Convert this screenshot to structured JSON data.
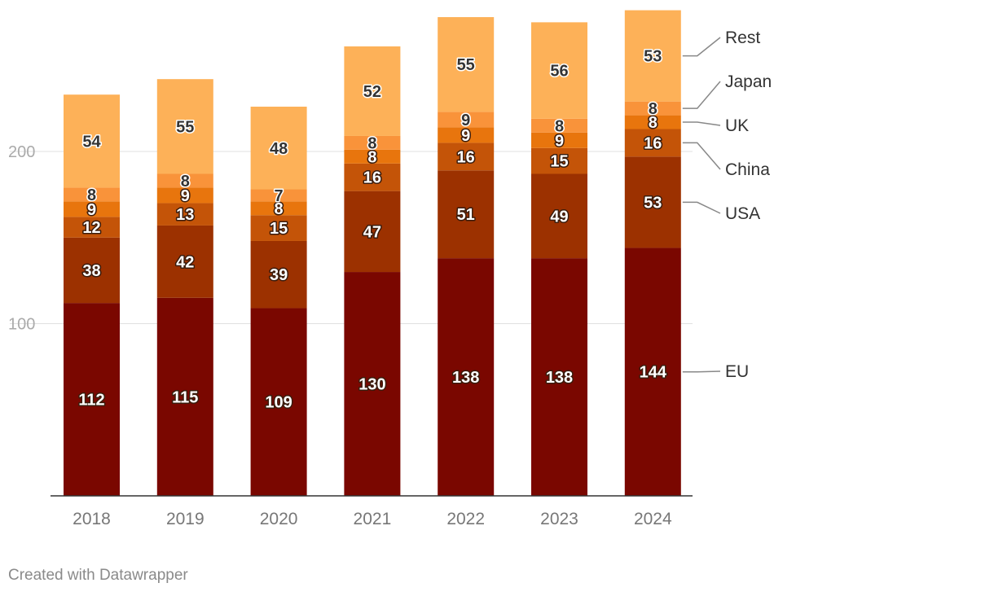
{
  "chart_data": {
    "type": "bar",
    "stacked": true,
    "categories": [
      "2018",
      "2019",
      "2020",
      "2021",
      "2022",
      "2023",
      "2024"
    ],
    "series": [
      {
        "name": "EU",
        "color": "#7a0700",
        "values": [
          112,
          115,
          109,
          130,
          138,
          138,
          144
        ]
      },
      {
        "name": "USA",
        "color": "#9c3100",
        "values": [
          38,
          42,
          39,
          47,
          51,
          49,
          53
        ]
      },
      {
        "name": "China",
        "color": "#c45408",
        "values": [
          12,
          13,
          15,
          16,
          16,
          15,
          16
        ]
      },
      {
        "name": "UK",
        "color": "#e8750d",
        "values": [
          9,
          9,
          8,
          8,
          9,
          9,
          8
        ]
      },
      {
        "name": "Japan",
        "color": "#f9933a",
        "values": [
          8,
          8,
          7,
          8,
          9,
          8,
          8
        ]
      },
      {
        "name": "Rest",
        "color": "#fdb158",
        "values": [
          54,
          55,
          48,
          52,
          55,
          56,
          53
        ]
      }
    ],
    "yticks": [
      100,
      200
    ],
    "ylim": [
      0,
      285
    ],
    "grid": true,
    "legend": "right, labels aligned to final bar segments",
    "title": "",
    "xlabel": "",
    "ylabel": ""
  },
  "footer": {
    "credit": "Created with Datawrapper"
  }
}
